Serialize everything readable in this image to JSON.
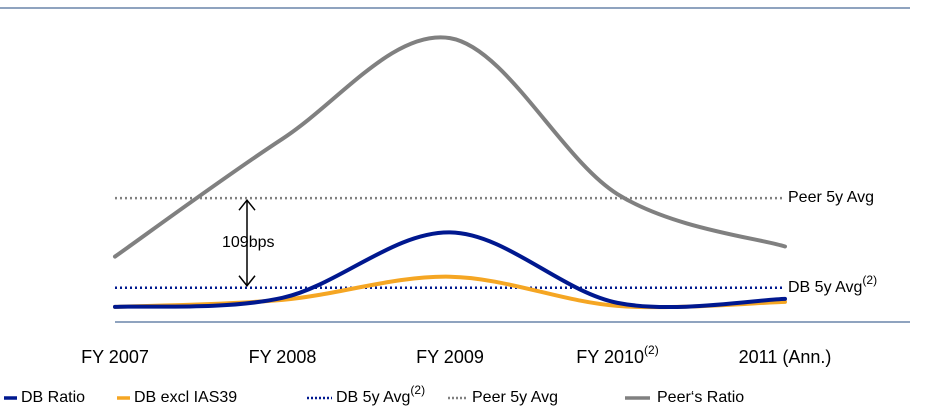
{
  "chart_data": {
    "type": "line",
    "categories": [
      "FY 2007",
      "FY 2008",
      "FY 2009",
      "FY 2010",
      "2011 (Ann.)"
    ],
    "category_notes": [
      null,
      null,
      null,
      "(2)",
      null
    ],
    "ylim": [
      0,
      300
    ],
    "series": [
      {
        "name": "DB Ratio",
        "color": "#00188f",
        "style": "solid",
        "values": [
          15,
          24,
          89,
          19,
          23
        ]
      },
      {
        "name": "DB excl IAS39",
        "color": "#f5a623",
        "style": "solid",
        "values": [
          15,
          22,
          45,
          16,
          20
        ]
      },
      {
        "name": "DB 5y Avg",
        "note": "(2)",
        "color": "#00188f",
        "style": "dotted",
        "values": [
          34,
          34,
          34,
          34,
          34
        ]
      },
      {
        "name": "Peer 5y Avg",
        "color": "#808080",
        "style": "dotted",
        "values": [
          123,
          123,
          123,
          123,
          123
        ]
      },
      {
        "name": "Peer‘s Ratio",
        "color": "#808080",
        "style": "solid",
        "values": [
          65,
          182,
          282,
          127,
          75
        ]
      }
    ],
    "annotations": [
      {
        "text": "109bps"
      }
    ]
  }
}
